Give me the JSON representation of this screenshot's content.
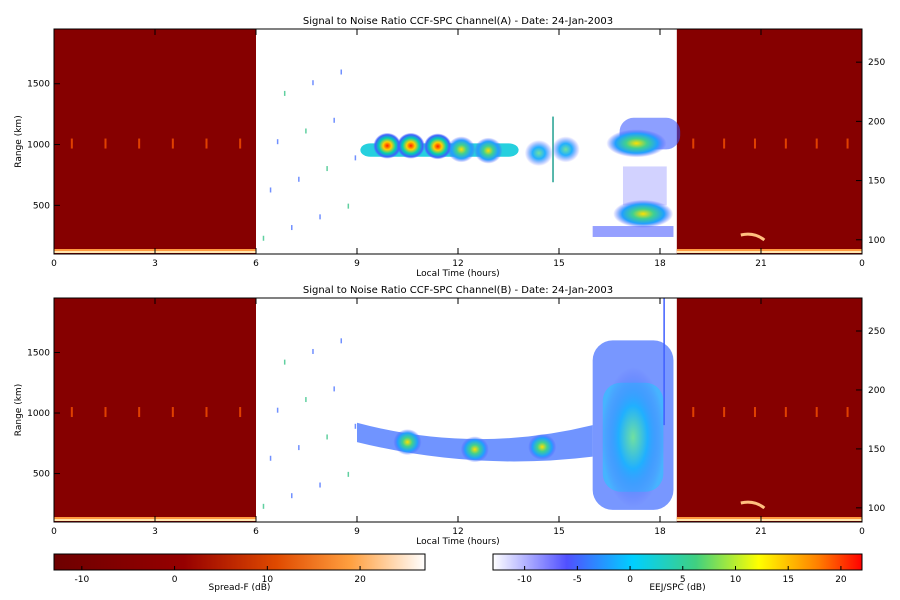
{
  "chart_data": [
    {
      "type": "heatmap",
      "title": "Signal to Noise Ratio CCF-SPC Channel(A) - Date: 24-Jan-2003",
      "xlabel": "Local Time (hours)",
      "ylabel": "Range (km)",
      "x_ticks": [
        "0",
        "3",
        "6",
        "9",
        "12",
        "15",
        "18",
        "21",
        "0"
      ],
      "xlim": [
        0,
        24
      ],
      "y_ticks": [
        500,
        1000,
        1500
      ],
      "ylim": [
        100,
        1950
      ],
      "y2_ticks": [
        100,
        150,
        200,
        250
      ],
      "y2lim": [
        88,
        278
      ],
      "spread_f_intervals": [
        [
          0,
          6
        ],
        [
          18.5,
          24
        ]
      ],
      "echo_blobs": [
        {
          "t": 9.9,
          "r": 990,
          "snr": 22
        },
        {
          "t": 10.6,
          "r": 990,
          "snr": 14
        },
        {
          "t": 11.4,
          "r": 985,
          "snr": 12
        },
        {
          "t": 12.1,
          "r": 960,
          "snr": 8
        },
        {
          "t": 12.9,
          "r": 950,
          "snr": 6
        },
        {
          "t": 14.4,
          "r": 930,
          "snr": 0
        },
        {
          "t": 15.2,
          "r": 960,
          "snr": 3
        },
        {
          "t": 17.3,
          "r": 1010,
          "snr": 6
        },
        {
          "t": 17.5,
          "r": 430,
          "snr": 6
        }
      ]
    },
    {
      "type": "heatmap",
      "title": "Signal to Noise Ratio CCF-SPC Channel(B) - Date: 24-Jan-2003",
      "xlabel": "Local Time (hours)",
      "ylabel": "Range (km)",
      "x_ticks": [
        "0",
        "3",
        "6",
        "9",
        "12",
        "15",
        "18",
        "21",
        "0"
      ],
      "xlim": [
        0,
        24
      ],
      "y_ticks": [
        500,
        1000,
        1500
      ],
      "ylim": [
        100,
        1950
      ],
      "y2_ticks": [
        100,
        150,
        200,
        250
      ],
      "y2lim": [
        88,
        278
      ],
      "spread_f_intervals": [
        [
          0,
          6
        ],
        [
          18.5,
          24
        ]
      ],
      "echo_blobs": [
        {
          "t": 10.5,
          "r": 760,
          "snr": 6
        },
        {
          "t": 12.5,
          "r": 700,
          "snr": 10
        },
        {
          "t": 14.5,
          "r": 720,
          "snr": 6
        },
        {
          "t": 17.2,
          "r": 800,
          "snr": 5
        }
      ]
    }
  ],
  "colorbars": [
    {
      "label": "Spread-F (dB)",
      "ticks": [
        -10,
        0,
        10,
        20
      ],
      "range": [
        -13,
        27
      ]
    },
    {
      "label": "EEJ/SPC (dB)",
      "ticks": [
        -10,
        -5,
        0,
        5,
        10,
        15,
        20
      ],
      "range": [
        -13,
        22
      ]
    }
  ]
}
